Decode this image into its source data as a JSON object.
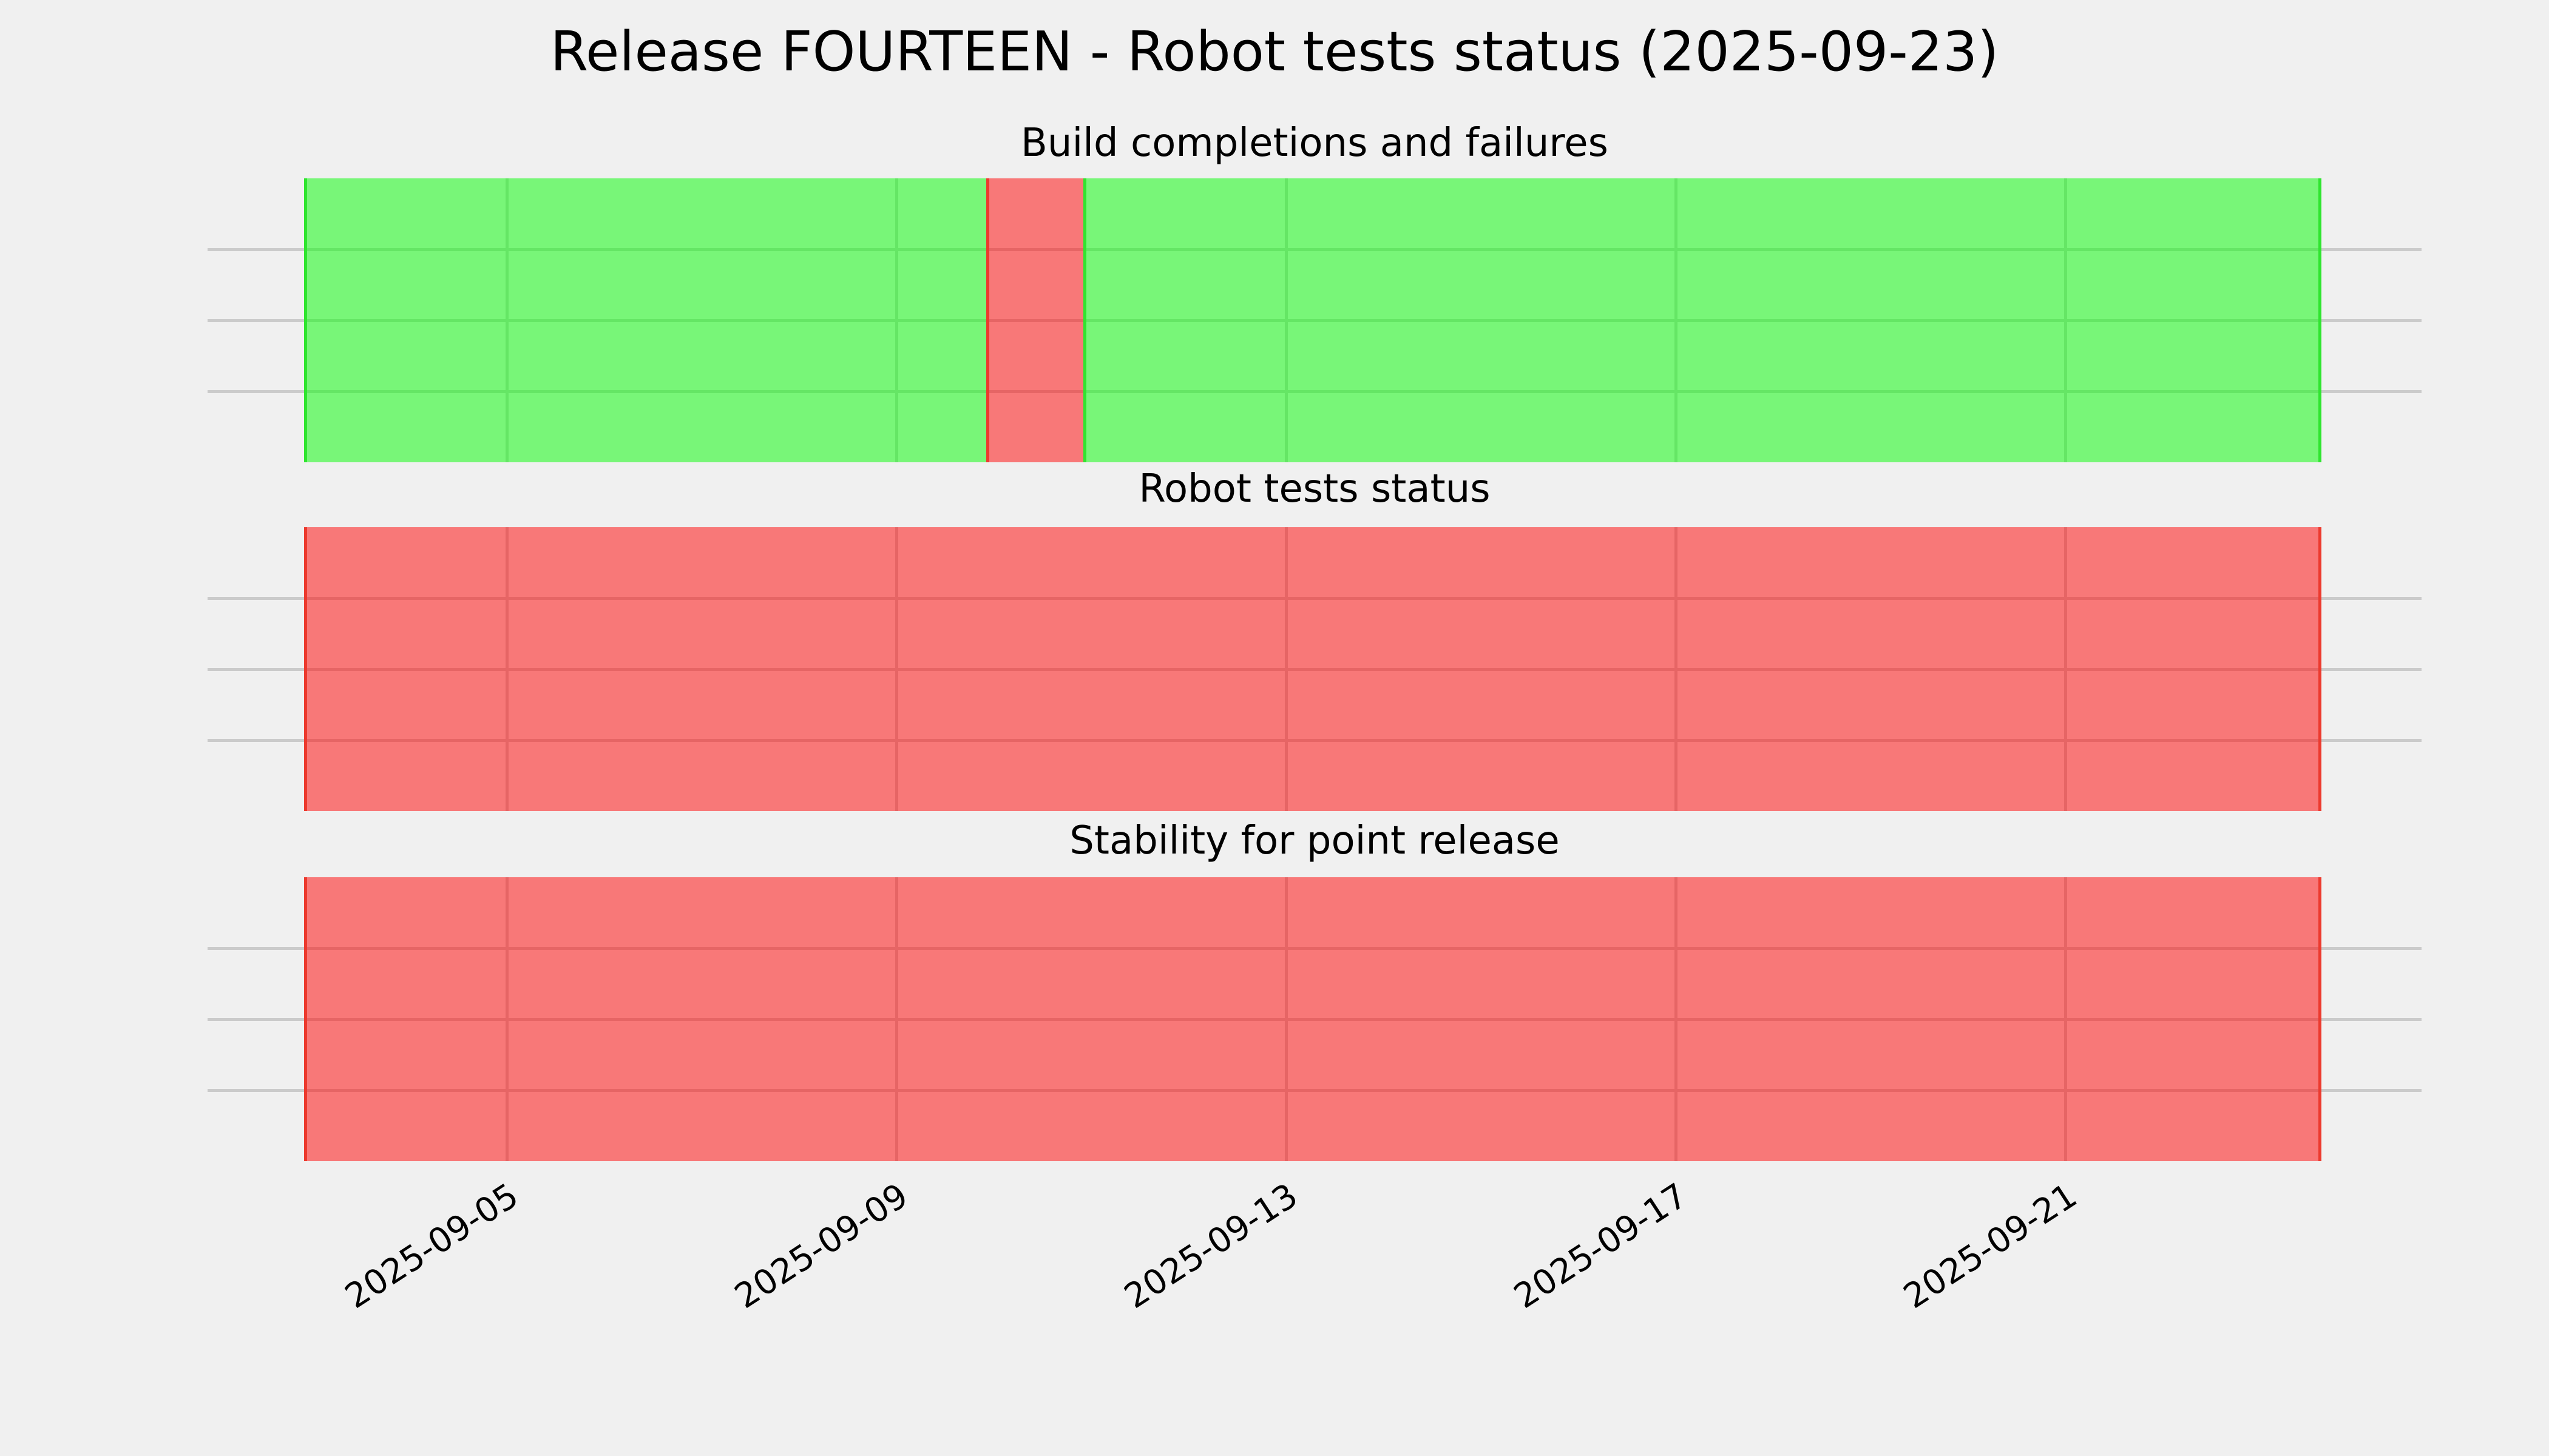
{
  "figure": {
    "background": "#F0F0F0",
    "grid_color": "#CBCBCB"
  },
  "chart_data": {
    "type": "heatmap",
    "title": "Release FOURTEEN - Robot tests status (2025-09-23)",
    "as_of_date": "2025-09-23",
    "date_range": {
      "start": "2025-09-03",
      "end": "2025-09-23"
    },
    "x_tick_labels": [
      "2025-09-05",
      "2025-09-09",
      "2025-09-13",
      "2025-09-17",
      "2025-09-21"
    ],
    "x_tick_rotation_deg": 33,
    "rows_per_band": 4,
    "grid": true,
    "legend": false,
    "colors": {
      "pass_fill": "#78F678",
      "fail_fill": "#F87878",
      "pass_grid": "#65E665",
      "fail_grid": "#E66565",
      "pass_line": "#2FE52F",
      "fail_line": "#EC3A2E",
      "grid": "#CBCBCB",
      "background": "#F0F0F0",
      "text": "#000000"
    },
    "subplots": [
      {
        "title": "Build completions and failures",
        "default_status": "pass",
        "exceptions": [
          {
            "date": "2025-09-10",
            "status": "fail"
          }
        ],
        "current_status": "pass"
      },
      {
        "title": "Robot tests status",
        "default_status": "fail",
        "exceptions": [],
        "current_status": "fail"
      },
      {
        "title": "Stability for point release",
        "default_status": "fail",
        "exceptions": [],
        "current_status": "fail"
      }
    ]
  }
}
